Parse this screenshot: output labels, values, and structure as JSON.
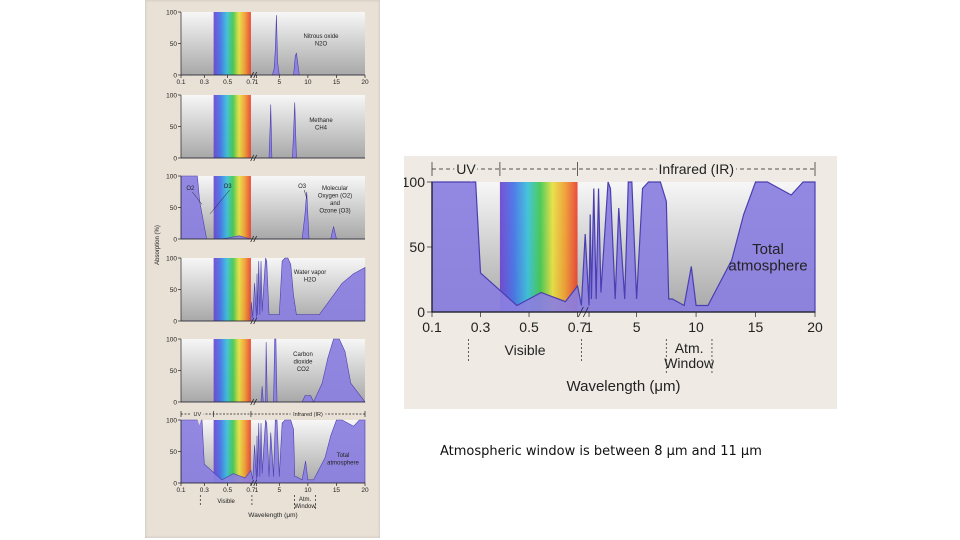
{
  "caption": "Atmospheric window is between 8 µm and 11 µm",
  "colors": {
    "absorption_fill": "#8b7fe0",
    "absorption_stroke": "#4a3fb0",
    "panel_background_left": "#e9e1d6",
    "panel_background_right": "#efebe4"
  },
  "chart_data": [
    {
      "type": "area",
      "panel": "Nitrous oxide N2O",
      "labels": [
        "Nitrous oxide",
        "N2O"
      ],
      "ylim": [
        0,
        100
      ],
      "yticks": [
        "100",
        "50",
        "0"
      ],
      "xticks": [
        "0.1",
        "0.3",
        "0.5",
        "0.7",
        "1",
        "5",
        "10",
        "15",
        "20"
      ],
      "x": [
        0.1,
        0.7,
        1,
        3.8,
        4.1,
        4.3,
        4.5,
        4.7,
        5,
        7.5,
        7.8,
        8,
        8.5,
        17,
        20
      ],
      "values": [
        0,
        0,
        0,
        0,
        10,
        40,
        95,
        20,
        0,
        0,
        30,
        35,
        0,
        0,
        0
      ]
    },
    {
      "type": "area",
      "panel": "Methane CH4",
      "labels": [
        "Methane",
        "CH4"
      ],
      "ylim": [
        0,
        100
      ],
      "yticks": [
        "100",
        "50",
        "0"
      ],
      "xticks": [],
      "x": [
        0.1,
        0.7,
        1,
        3.2,
        3.4,
        3.5,
        3.7,
        7.3,
        7.5,
        7.7,
        8,
        20
      ],
      "values": [
        0,
        0,
        0,
        0,
        50,
        85,
        0,
        0,
        40,
        88,
        0,
        0
      ]
    },
    {
      "type": "area",
      "panel": "Molecular Oxygen (O2) and Ozone (O3)",
      "labels": [
        "Molecular",
        "Oxygen (O2)",
        "and",
        "Ozone (O3)"
      ],
      "annotations": [
        "O2",
        "O3",
        "O3"
      ],
      "ylim": [
        0,
        100
      ],
      "yticks": [
        "100",
        "50",
        "0"
      ],
      "xticks": [],
      "x": [
        0.1,
        0.24,
        0.26,
        0.3,
        0.32,
        0.45,
        0.6,
        0.7,
        1,
        9,
        9.5,
        9.8,
        10.2,
        14,
        14.5,
        15,
        20
      ],
      "values": [
        100,
        100,
        60,
        20,
        0,
        0,
        5,
        0,
        0,
        0,
        40,
        75,
        0,
        0,
        20,
        0,
        0
      ]
    },
    {
      "type": "area",
      "panel": "Water vapor H2O",
      "labels": [
        "Water vapor",
        "H2O"
      ],
      "ylim": [
        0,
        100
      ],
      "yticks": [
        "100",
        "50",
        "0"
      ],
      "xticks": [],
      "x": [
        0.1,
        0.7,
        0.72,
        0.8,
        0.9,
        1,
        1.1,
        1.2,
        1.4,
        1.6,
        1.8,
        2,
        2.6,
        2.8,
        3.2,
        5,
        5.5,
        6,
        6.5,
        7,
        7.5,
        8,
        10,
        12,
        14,
        16,
        18,
        20
      ],
      "values": [
        0,
        0,
        30,
        5,
        60,
        5,
        75,
        10,
        95,
        10,
        95,
        15,
        100,
        95,
        10,
        10,
        95,
        100,
        100,
        90,
        40,
        10,
        10,
        10,
        35,
        60,
        75,
        85
      ]
    },
    {
      "type": "area",
      "panel": "Carbon dioxide CO2",
      "labels": [
        "Carbon",
        "dioxide",
        "CO2"
      ],
      "ylim": [
        0,
        100
      ],
      "yticks": [
        "100",
        "50",
        "0"
      ],
      "xticks": [],
      "x": [
        0.1,
        0.7,
        1,
        1.8,
        2,
        2.2,
        2.6,
        2.7,
        2.9,
        4,
        4.2,
        4.4,
        4.6,
        9,
        9.5,
        10.5,
        11,
        12.5,
        13.5,
        14.5,
        15.5,
        16.5,
        17.5,
        20
      ],
      "values": [
        0,
        0,
        0,
        0,
        25,
        0,
        0,
        95,
        0,
        0,
        100,
        100,
        0,
        0,
        10,
        10,
        0,
        30,
        70,
        100,
        100,
        80,
        30,
        0
      ]
    },
    {
      "type": "area",
      "panel": "Total atmosphere (small)",
      "labels": [
        "Total",
        "atmosphere"
      ],
      "region_labels": [
        "UV",
        "Infrared (IR)"
      ],
      "ylim": [
        0,
        100
      ],
      "yticks": [
        "100",
        "50",
        "0"
      ],
      "xticks": [
        "0.1",
        "0.3",
        "0.5",
        "0.7",
        "1",
        "5",
        "10",
        "15",
        "20"
      ],
      "below_labels": [
        "Visible",
        "Atm.",
        "Window"
      ],
      "xlabel": "Wavelength (μm)",
      "x": [
        0.1,
        0.28,
        0.3,
        0.45,
        0.55,
        0.65,
        0.7,
        0.8,
        0.9,
        1,
        1.1,
        1.2,
        1.4,
        1.6,
        1.8,
        2,
        2.6,
        2.8,
        3.2,
        3.5,
        4,
        4.3,
        4.6,
        5,
        5.5,
        6,
        7,
        7.5,
        7.7,
        8,
        9,
        9.6,
        10,
        11,
        13,
        14,
        15,
        16,
        17,
        18,
        19,
        20
      ],
      "values": [
        100,
        100,
        30,
        5,
        15,
        8,
        20,
        5,
        60,
        5,
        75,
        10,
        95,
        10,
        95,
        15,
        100,
        95,
        10,
        80,
        10,
        100,
        100,
        10,
        95,
        100,
        100,
        85,
        10,
        10,
        5,
        35,
        5,
        5,
        40,
        75,
        100,
        100,
        95,
        90,
        100,
        100
      ]
    },
    {
      "type": "area",
      "panel": "Total atmosphere (large)",
      "labels": [
        "Total",
        "atmosphere"
      ],
      "region_labels": [
        "UV",
        "Infrared (IR)"
      ],
      "ylim": [
        0,
        100
      ],
      "yticks": [
        "100",
        "50",
        "0"
      ],
      "xticks": [
        "0.1",
        "0.3",
        "0.5",
        "0.7",
        "1",
        "5",
        "10",
        "15",
        "20"
      ],
      "below_labels": [
        "Visible",
        "Atm.",
        "Window"
      ],
      "xlabel": "Wavelength (μm)",
      "x": [
        0.1,
        0.28,
        0.3,
        0.45,
        0.55,
        0.65,
        0.7,
        0.8,
        0.9,
        1,
        1.1,
        1.2,
        1.4,
        1.6,
        1.8,
        2,
        2.6,
        2.8,
        3.2,
        3.5,
        4,
        4.3,
        4.6,
        5,
        5.5,
        6,
        7,
        7.5,
        7.7,
        8,
        9,
        9.6,
        10,
        11,
        13,
        14,
        15,
        16,
        17,
        18,
        19,
        20
      ],
      "values": [
        100,
        100,
        30,
        5,
        15,
        8,
        20,
        5,
        60,
        5,
        75,
        10,
        95,
        10,
        95,
        15,
        100,
        95,
        10,
        80,
        10,
        100,
        100,
        10,
        95,
        100,
        100,
        85,
        10,
        10,
        5,
        35,
        5,
        5,
        40,
        75,
        100,
        100,
        95,
        90,
        100,
        100
      ]
    }
  ],
  "left_figure": {
    "ylabel": "Absorption (%)"
  }
}
